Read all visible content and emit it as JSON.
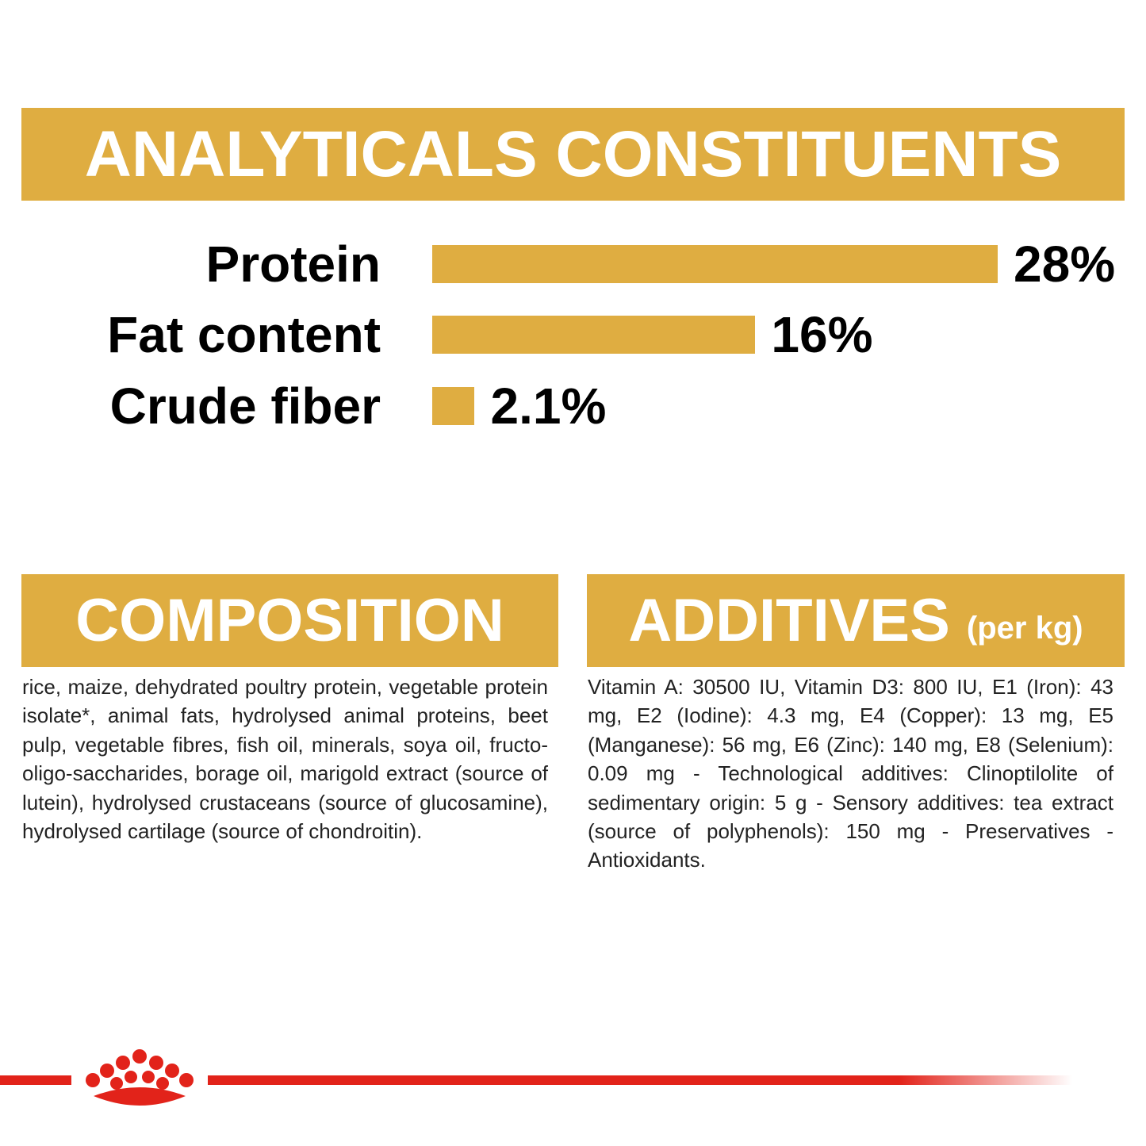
{
  "header": {
    "title": "ANALYTICALS CONSTITUENTS"
  },
  "chart_data": {
    "type": "bar",
    "categories": [
      "Protein",
      "Fat content",
      "Crude fiber"
    ],
    "values": [
      28,
      16,
      2.1
    ],
    "value_labels": [
      "28%",
      "16%",
      "2.1%"
    ],
    "color": "#dfad41"
  },
  "composition": {
    "title": "COMPOSITION",
    "text": "rice, maize, dehydrated poultry protein, vegetable protein isolate*, animal fats, hydrolysed animal proteins, beet pulp, vegetable fibres, fish oil, minerals, soya oil, fructo-oligo-saccharides, borage oil, marigold extract (source of lutein), hydrolysed crustaceans (source of glucosamine), hydrolysed cartilage (source of chondroitin)."
  },
  "additives": {
    "title": "ADDITIVES",
    "unit": "(per kg)",
    "text": "Vitamin A: 30500 IU, Vitamin D3: 800 IU, E1 (Iron): 43 mg, E2 (Iodine): 4.3 mg, E4 (Copper): 13 mg, E5 (Manganese): 56 mg, E6 (Zinc): 140 mg, E8 (Selenium): 0.09 mg - Technological additives: Clinoptilolite of sedimentary origin: 5 g - Sensory additives: tea extract (source of polyphenols): 150 mg - Preservatives - Antioxidants."
  }
}
